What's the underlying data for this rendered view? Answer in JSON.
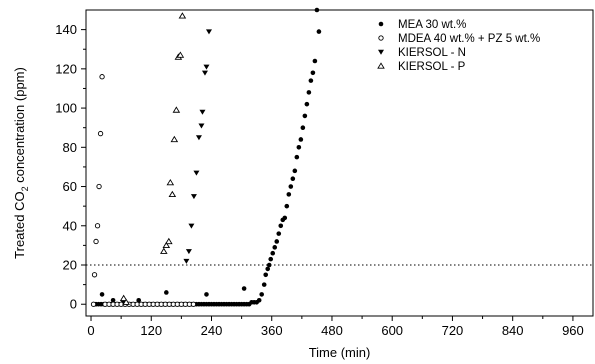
{
  "chart_data": {
    "type": "scatter",
    "title": "",
    "xlabel": "Time (min)",
    "ylabel_parts": [
      "Treated CO",
      "2",
      " concentration (ppm)"
    ],
    "xlim": [
      -10,
      1000
    ],
    "ylim": [
      -6,
      150
    ],
    "xticks": [
      0,
      120,
      240,
      360,
      480,
      600,
      720,
      840,
      960
    ],
    "yticks": [
      0,
      20,
      40,
      60,
      80,
      100,
      120,
      140
    ],
    "legend_position": "top-right",
    "reference_line": {
      "y": 20,
      "style": "dotted"
    },
    "series": [
      {
        "name": "MEA 30 wt.%",
        "marker": "filled-circle",
        "points": [
          [
            5,
            0
          ],
          [
            10,
            0
          ],
          [
            15,
            0
          ],
          [
            20,
            0
          ],
          [
            25,
            0
          ],
          [
            30,
            0
          ],
          [
            35,
            0
          ],
          [
            40,
            0
          ],
          [
            45,
            0
          ],
          [
            50,
            0
          ],
          [
            55,
            0
          ],
          [
            60,
            0
          ],
          [
            65,
            0
          ],
          [
            70,
            0
          ],
          [
            75,
            0
          ],
          [
            80,
            0
          ],
          [
            85,
            0
          ],
          [
            90,
            0
          ],
          [
            95,
            0
          ],
          [
            100,
            0
          ],
          [
            105,
            0
          ],
          [
            110,
            0
          ],
          [
            115,
            0
          ],
          [
            120,
            0
          ],
          [
            125,
            0
          ],
          [
            130,
            0
          ],
          [
            135,
            0
          ],
          [
            140,
            0
          ],
          [
            145,
            0
          ],
          [
            150,
            0
          ],
          [
            155,
            0
          ],
          [
            160,
            0
          ],
          [
            165,
            0
          ],
          [
            170,
            0
          ],
          [
            175,
            0
          ],
          [
            180,
            0
          ],
          [
            185,
            0
          ],
          [
            190,
            0
          ],
          [
            195,
            0
          ],
          [
            200,
            0
          ],
          [
            205,
            0
          ],
          [
            210,
            0
          ],
          [
            215,
            0
          ],
          [
            220,
            0
          ],
          [
            225,
            0
          ],
          [
            230,
            0
          ],
          [
            235,
            0
          ],
          [
            240,
            0
          ],
          [
            245,
            0
          ],
          [
            250,
            0
          ],
          [
            255,
            0
          ],
          [
            260,
            0
          ],
          [
            265,
            0
          ],
          [
            270,
            0
          ],
          [
            275,
            0
          ],
          [
            280,
            0
          ],
          [
            285,
            0
          ],
          [
            290,
            0
          ],
          [
            295,
            0
          ],
          [
            300,
            0
          ],
          [
            305,
            0
          ],
          [
            310,
            0
          ],
          [
            315,
            0
          ],
          [
            320,
            1
          ],
          [
            325,
            1
          ],
          [
            330,
            1
          ],
          [
            22,
            5
          ],
          [
            44,
            2
          ],
          [
            64,
            2
          ],
          [
            95,
            2
          ],
          [
            150,
            6
          ],
          [
            230,
            5
          ],
          [
            305,
            8
          ],
          [
            335,
            2
          ],
          [
            340,
            5
          ],
          [
            345,
            10
          ],
          [
            348,
            15
          ],
          [
            352,
            18
          ],
          [
            355,
            20
          ],
          [
            358,
            23
          ],
          [
            362,
            26
          ],
          [
            366,
            29
          ],
          [
            370,
            32
          ],
          [
            374,
            36
          ],
          [
            378,
            40
          ],
          [
            382,
            43
          ],
          [
            386,
            44
          ],
          [
            390,
            50
          ],
          [
            394,
            56
          ],
          [
            398,
            60
          ],
          [
            402,
            64
          ],
          [
            406,
            68
          ],
          [
            410,
            75
          ],
          [
            414,
            80
          ],
          [
            418,
            84
          ],
          [
            422,
            90
          ],
          [
            426,
            96
          ],
          [
            430,
            102
          ],
          [
            434,
            108
          ],
          [
            438,
            114
          ],
          [
            442,
            118
          ],
          [
            446,
            124
          ],
          [
            450,
            150
          ],
          [
            454,
            139
          ]
        ]
      },
      {
        "name": "MDEA 40 wt.% + PZ 5 wt.%",
        "marker": "open-circle",
        "points": [
          [
            5,
            0
          ],
          [
            7,
            15
          ],
          [
            10,
            32
          ],
          [
            13,
            40
          ],
          [
            16,
            60
          ],
          [
            19,
            87
          ],
          [
            22,
            116
          ],
          [
            28,
            0
          ],
          [
            36,
            0
          ],
          [
            44,
            0
          ],
          [
            52,
            0
          ],
          [
            60,
            0
          ],
          [
            68,
            0
          ],
          [
            76,
            0
          ],
          [
            84,
            0
          ],
          [
            92,
            0
          ],
          [
            100,
            0
          ],
          [
            108,
            0
          ],
          [
            116,
            0
          ],
          [
            124,
            0
          ],
          [
            132,
            0
          ],
          [
            140,
            0
          ],
          [
            148,
            0
          ],
          [
            156,
            0
          ],
          [
            164,
            0
          ],
          [
            172,
            0
          ],
          [
            180,
            0
          ],
          [
            188,
            0
          ],
          [
            196,
            0
          ],
          [
            204,
            0
          ]
        ]
      },
      {
        "name": "KIERSOL - N",
        "marker": "filled-triangle-down",
        "points": [
          [
            190,
            22
          ],
          [
            195,
            27
          ],
          [
            200,
            40
          ],
          [
            205,
            55
          ],
          [
            210,
            67
          ],
          [
            215,
            85
          ],
          [
            220,
            91
          ],
          [
            222,
            98
          ],
          [
            227,
            118
          ],
          [
            230,
            121
          ],
          [
            235,
            139
          ]
        ]
      },
      {
        "name": "KIERSOL - P",
        "marker": "open-triangle-up",
        "points": [
          [
            65,
            3
          ],
          [
            70,
            1
          ],
          [
            145,
            27
          ],
          [
            150,
            30
          ],
          [
            155,
            32
          ],
          [
            158,
            62
          ],
          [
            162,
            56
          ],
          [
            166,
            84
          ],
          [
            170,
            99
          ],
          [
            174,
            126
          ],
          [
            178,
            127
          ],
          [
            182,
            147
          ]
        ]
      }
    ]
  }
}
